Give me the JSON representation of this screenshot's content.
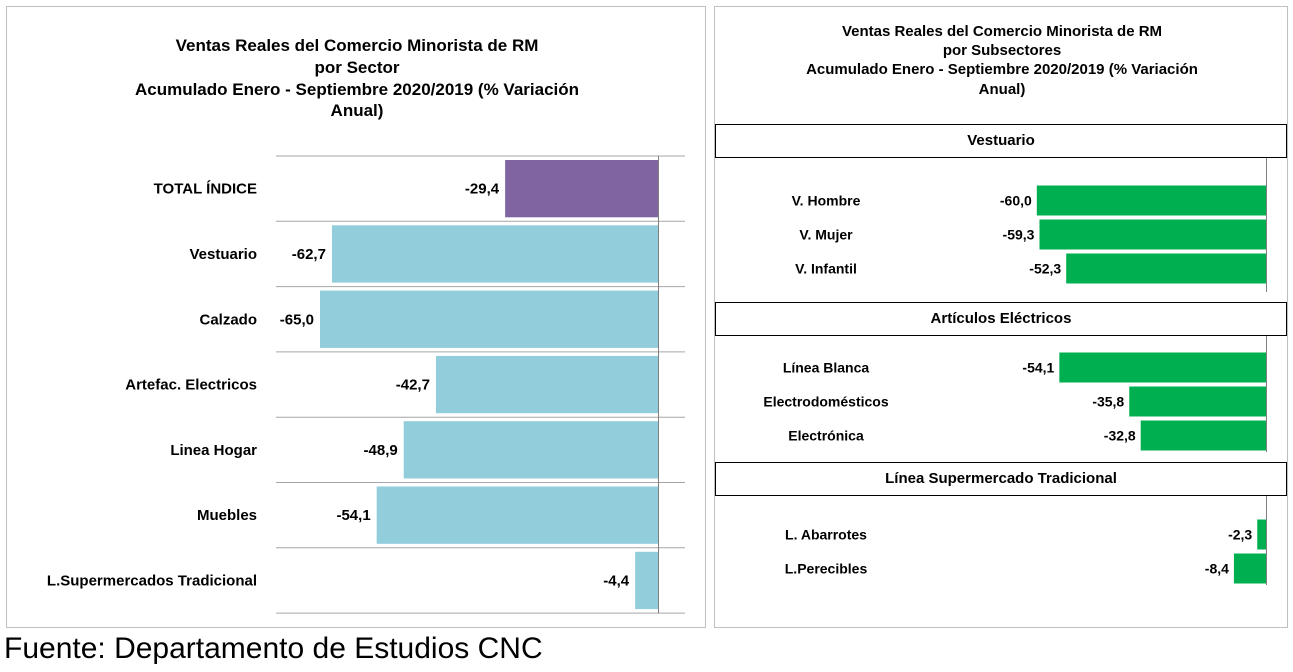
{
  "chart_data": [
    {
      "type": "bar",
      "orientation": "horizontal",
      "title_lines": [
        "Ventas Reales del Comercio Minorista de RM",
        "por Sector",
        "Acumulado Enero - Septiembre 2020/2019 (% Variación",
        "Anual)"
      ],
      "categories": [
        "TOTAL ÍNDICE",
        "Vestuario",
        "Calzado",
        "Artefac. Electricos",
        "Linea Hogar",
        "Muebles",
        "L.Supermercados Tradicional"
      ],
      "values": [
        -29.4,
        -62.7,
        -65.0,
        -42.7,
        -48.9,
        -54.1,
        -4.4
      ],
      "value_labels": [
        "-29,4",
        "-62,7",
        "-65,0",
        "-42,7",
        "-48,9",
        "-54,1",
        "-4,4"
      ],
      "bar_colors": [
        "#8064a2",
        "#92cddc",
        "#92cddc",
        "#92cddc",
        "#92cddc",
        "#92cddc",
        "#92cddc"
      ],
      "xlim": [
        -70,
        0
      ],
      "grid": "horizontal separators"
    },
    {
      "type": "bar",
      "orientation": "horizontal",
      "title_lines": [
        "Ventas Reales del Comercio Minorista de RM",
        "por Subsectores",
        "Acumulado Enero - Septiembre 2020/2019 (% Variación",
        "Anual)"
      ],
      "groups": [
        {
          "name": "Vestuario",
          "categories": [
            "V. Hombre",
            "V. Mujer",
            "V. Infantil"
          ],
          "values": [
            -60.0,
            -59.3,
            -52.3
          ],
          "value_labels": [
            "-60,0",
            "-59,3",
            "-52,3"
          ]
        },
        {
          "name": "Artículos Eléctricos",
          "categories": [
            "Línea Blanca",
            "Electrodomésticos",
            "Electrónica"
          ],
          "values": [
            -54.1,
            -35.8,
            -32.8
          ],
          "value_labels": [
            "-54,1",
            "-35,8",
            "-32,8"
          ]
        },
        {
          "name": "Línea  Supermercado Tradicional",
          "categories": [
            "L. Abarrotes",
            "L.Perecibles"
          ],
          "values": [
            -2.3,
            -8.4
          ],
          "value_labels": [
            "-2,3",
            "-8,4"
          ]
        }
      ],
      "bar_color": "#00b050",
      "xlim": [
        -60,
        0
      ]
    }
  ],
  "footer": {
    "source": "Fuente: Departamento de Estudios CNC"
  }
}
